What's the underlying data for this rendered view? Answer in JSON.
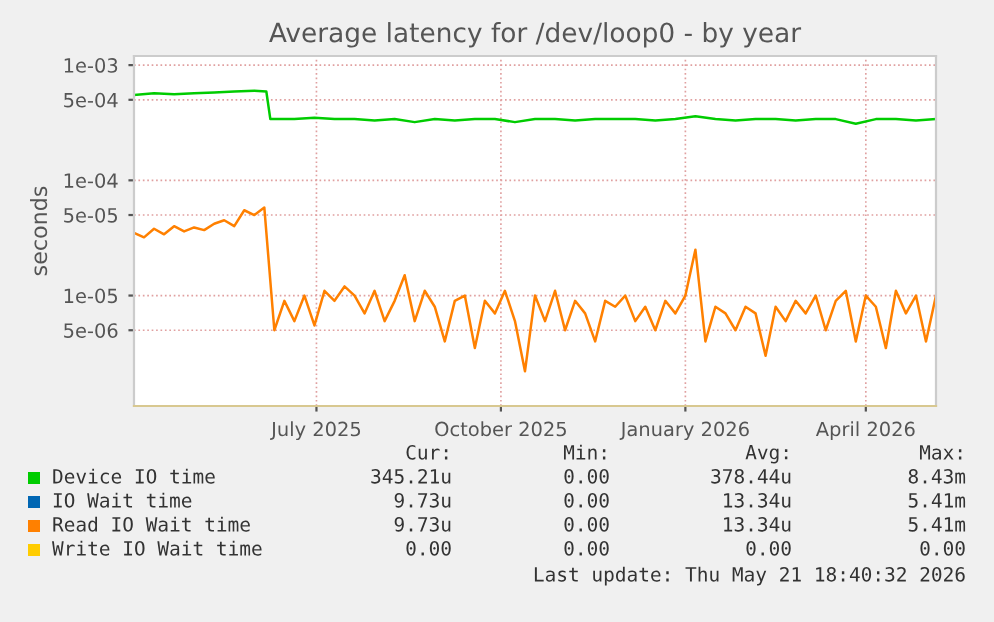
{
  "chart_data": {
    "type": "line",
    "title": "Average latency for /dev/loop0 - by year",
    "ylabel": "seconds",
    "log": "y",
    "ylim": [
      1.1e-06,
      0.0012
    ],
    "yticks": [
      {
        "value": 0.001,
        "label": "1e-03"
      },
      {
        "value": 0.0005,
        "label": "5e-04"
      },
      {
        "value": 0.0001,
        "label": "1e-04"
      },
      {
        "value": 5e-05,
        "label": "5e-05"
      },
      {
        "value": 1e-05,
        "label": "1e-05"
      },
      {
        "value": 5e-06,
        "label": "5e-06"
      }
    ],
    "xlim": [
      "2025-04-16",
      "2026-05-21"
    ],
    "xticks": [
      {
        "value": "2025-07-16",
        "label": "July 2025"
      },
      {
        "value": "2025-10-16",
        "label": "October 2025"
      },
      {
        "value": "2026-01-16",
        "label": "January 2026"
      },
      {
        "value": "2026-04-16",
        "label": "April 2026"
      }
    ],
    "grid": true,
    "legend": "bottom",
    "line_style": "solid",
    "marker": "none",
    "series": [
      {
        "name": "Device IO time",
        "color": "#00cc00",
        "x": [
          "2025-04-16",
          "2025-04-26",
          "2025-05-06",
          "2025-05-16",
          "2025-05-26",
          "2025-06-05",
          "2025-06-15",
          "2025-06-21",
          "2025-06-23",
          "2025-07-05",
          "2025-07-15",
          "2025-07-25",
          "2025-08-04",
          "2025-08-14",
          "2025-08-24",
          "2025-09-03",
          "2025-09-13",
          "2025-09-23",
          "2025-10-03",
          "2025-10-13",
          "2025-10-23",
          "2025-11-02",
          "2025-11-12",
          "2025-11-22",
          "2025-12-02",
          "2025-12-12",
          "2025-12-22",
          "2026-01-01",
          "2026-01-11",
          "2026-01-21",
          "2026-01-31",
          "2026-02-10",
          "2026-02-20",
          "2026-03-02",
          "2026-03-12",
          "2026-03-22",
          "2026-04-01",
          "2026-04-11",
          "2026-04-21",
          "2026-05-01",
          "2026-05-11",
          "2026-05-21"
        ],
        "values": [
          0.00055,
          0.00057,
          0.00056,
          0.00057,
          0.00058,
          0.00059,
          0.0006,
          0.00059,
          0.00034,
          0.00034,
          0.00035,
          0.00034,
          0.00034,
          0.00033,
          0.00034,
          0.00032,
          0.00034,
          0.00033,
          0.00034,
          0.00034,
          0.00032,
          0.00034,
          0.00034,
          0.00033,
          0.00034,
          0.00034,
          0.00034,
          0.00033,
          0.00034,
          0.00036,
          0.00034,
          0.00033,
          0.00034,
          0.00034,
          0.00033,
          0.00034,
          0.00034,
          0.00031,
          0.00034,
          0.00034,
          0.00033,
          0.00034
        ]
      },
      {
        "name": "IO Wait time",
        "color": "#0066b3"
      },
      {
        "name": "Read IO Wait time",
        "color": "#ff8000",
        "x": [
          "2025-04-16",
          "2025-04-21",
          "2025-04-26",
          "2025-05-01",
          "2025-05-06",
          "2025-05-11",
          "2025-05-16",
          "2025-05-21",
          "2025-05-26",
          "2025-05-31",
          "2025-06-05",
          "2025-06-10",
          "2025-06-15",
          "2025-06-20",
          "2025-06-25",
          "2025-06-30",
          "2025-07-05",
          "2025-07-10",
          "2025-07-15",
          "2025-07-20",
          "2025-07-25",
          "2025-07-30",
          "2025-08-04",
          "2025-08-09",
          "2025-08-14",
          "2025-08-19",
          "2025-08-24",
          "2025-08-29",
          "2025-09-03",
          "2025-09-08",
          "2025-09-13",
          "2025-09-18",
          "2025-09-23",
          "2025-09-28",
          "2025-10-03",
          "2025-10-08",
          "2025-10-13",
          "2025-10-18",
          "2025-10-23",
          "2025-10-28",
          "2025-11-02",
          "2025-11-07",
          "2025-11-12",
          "2025-11-17",
          "2025-11-22",
          "2025-11-27",
          "2025-12-02",
          "2025-12-07",
          "2025-12-12",
          "2025-12-17",
          "2025-12-22",
          "2025-12-27",
          "2026-01-01",
          "2026-01-06",
          "2026-01-11",
          "2026-01-16",
          "2026-01-21",
          "2026-01-26",
          "2026-01-31",
          "2026-02-05",
          "2026-02-10",
          "2026-02-15",
          "2026-02-20",
          "2026-02-25",
          "2026-03-02",
          "2026-03-07",
          "2026-03-12",
          "2026-03-17",
          "2026-03-22",
          "2026-03-27",
          "2026-04-01",
          "2026-04-06",
          "2026-04-11",
          "2026-04-16",
          "2026-04-21",
          "2026-04-26",
          "2026-05-01",
          "2026-05-06",
          "2026-05-11",
          "2026-05-16",
          "2026-05-21"
        ],
        "values": [
          3.5e-05,
          3.2e-05,
          3.8e-05,
          3.4e-05,
          4e-05,
          3.6e-05,
          3.9e-05,
          3.7e-05,
          4.2e-05,
          4.5e-05,
          4e-05,
          5.5e-05,
          5e-05,
          5.8e-05,
          5e-06,
          9e-06,
          6e-06,
          1e-05,
          5.5e-06,
          1.1e-05,
          9e-06,
          1.2e-05,
          1e-05,
          7e-06,
          1.1e-05,
          6e-06,
          9e-06,
          1.5e-05,
          6e-06,
          1.1e-05,
          8e-06,
          4e-06,
          9e-06,
          1e-05,
          3.5e-06,
          9e-06,
          7e-06,
          1.1e-05,
          6e-06,
          2.2e-06,
          1e-05,
          6e-06,
          1.1e-05,
          5e-06,
          9e-06,
          7e-06,
          4e-06,
          9e-06,
          8e-06,
          1e-05,
          6e-06,
          8e-06,
          5e-06,
          9e-06,
          7e-06,
          1e-05,
          2.5e-05,
          4e-06,
          8e-06,
          7e-06,
          5e-06,
          8e-06,
          7e-06,
          3e-06,
          8e-06,
          6e-06,
          9e-06,
          7e-06,
          1e-05,
          5e-06,
          9e-06,
          1.1e-05,
          4e-06,
          1e-05,
          8e-06,
          3.5e-06,
          1.1e-05,
          7e-06,
          1e-05,
          4e-06,
          1e-05
        ]
      },
      {
        "name": "Write IO Wait time",
        "color": "#ffcc00"
      }
    ],
    "annotations": [
      "Cur:",
      "Min:",
      "Avg:",
      "Max:",
      "345.21u",
      "0.00",
      "378.44u",
      "8.43m",
      "9.73u",
      "0.00",
      "13.34u",
      "5.41m",
      "9.73u",
      "0.00",
      "13.34u",
      "5.41m",
      "0.00",
      "0.00",
      "0.00",
      "0.00",
      "Last update: Thu May 21 18:40:32 2026"
    ]
  }
}
